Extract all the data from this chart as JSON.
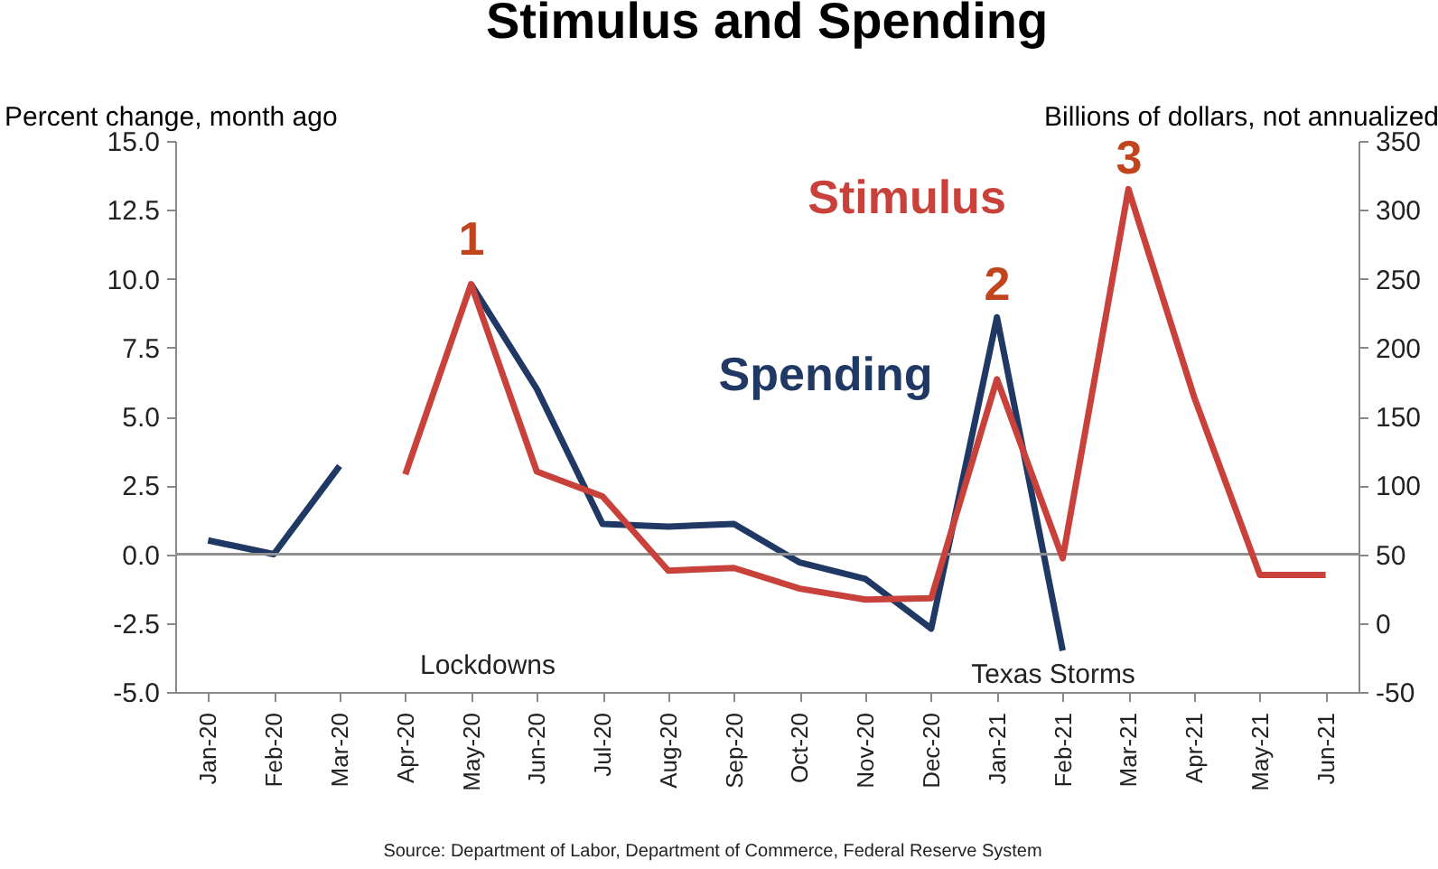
{
  "chart_data": {
    "type": "line",
    "title": "Stimulus and Spending",
    "ylabel": "Percent change, month ago",
    "y2label": "Billions of dollars, not annualized",
    "categories": [
      "Jan-20",
      "Feb-20",
      "Mar-20",
      "Apr-20",
      "May-20",
      "Jun-20",
      "Jul-20",
      "Aug-20",
      "Sep-20",
      "Oct-20",
      "Nov-20",
      "Dec-20",
      "Jan-21",
      "Feb-21",
      "Mar-21",
      "Apr-21",
      "May-21",
      "Jun-21"
    ],
    "series": [
      {
        "name": "Spending",
        "color": "#1f3864",
        "values": [
          0.5,
          0.0,
          3.2,
          null,
          9.8,
          6.0,
          1.1,
          1.0,
          1.1,
          -0.3,
          -0.9,
          -2.7,
          8.6,
          -3.5,
          null,
          null,
          null,
          null
        ]
      },
      {
        "name": "Stimulus",
        "color": "#c8413a",
        "axis": "y2",
        "values": [
          null,
          null,
          null,
          108,
          246,
          110,
          92,
          38,
          40,
          25,
          17,
          18,
          177,
          47,
          315,
          164,
          35,
          35
        ]
      }
    ],
    "ylim": [
      -5.0,
      15.0
    ],
    "yticks": [
      {
        "value": -5,
        "label": "-5.0"
      },
      {
        "value": -2.5,
        "label": "-2.5"
      },
      {
        "value": 0,
        "label": "0.0"
      },
      {
        "value": 2.5,
        "label": "2.5"
      },
      {
        "value": 5,
        "label": "5.0"
      },
      {
        "value": 7.5,
        "label": "7.5"
      },
      {
        "value": 10,
        "label": "10.0"
      },
      {
        "value": 12.5,
        "label": "12.5"
      },
      {
        "value": 15,
        "label": "15.0"
      }
    ],
    "y2lim": [
      -50,
      350
    ],
    "y2ticks": [
      -50,
      0,
      50,
      100,
      150,
      200,
      250,
      300,
      350
    ],
    "ref_lines": [
      {
        "axis": "y",
        "value": 0,
        "color": "#909090"
      }
    ],
    "grid": false,
    "marker": "none",
    "line_style": "solid",
    "annotations": [
      "1",
      "2",
      "3",
      "Lockdowns",
      "Texas Storms",
      "Source: Department of Labor, Department of Commerce, Federal Reserve System"
    ]
  }
}
